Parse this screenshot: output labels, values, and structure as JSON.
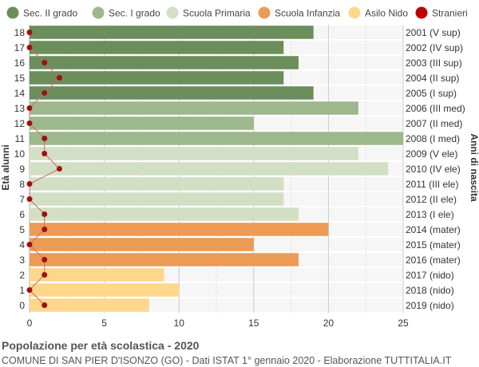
{
  "chart_data": {
    "type": "bar",
    "orientation": "horizontal",
    "title": "Popolazione per età scolastica - 2020",
    "subtitle": "COMUNE DI SAN PIER D'ISONZO (GO) - Dati ISTAT 1° gennaio 2020 - Elaborazione TUTTITALIA.IT",
    "ylabel_left": "Età alunni",
    "ylabel_right": "Anni di nascita",
    "xlim": [
      0,
      25
    ],
    "xticks": [
      "0",
      "5",
      "10",
      "15",
      "20",
      "25"
    ],
    "grid": true,
    "legend_position": "top",
    "legend": [
      {
        "label": "Sec. II grado",
        "color": "#6b8e5a"
      },
      {
        "label": "Sec. I grado",
        "color": "#9db88c"
      },
      {
        "label": "Scuola Primaria",
        "color": "#d3dfc4"
      },
      {
        "label": "Scuola Infanzia",
        "color": "#ec9b55"
      },
      {
        "label": "Asilo Nido",
        "color": "#fdd78b"
      },
      {
        "label": "Stranieri",
        "color": "#c00000"
      }
    ],
    "rows": [
      {
        "age": "18",
        "year": "2001 (V sup)",
        "value": 19,
        "stranieri": 0,
        "group": 0
      },
      {
        "age": "17",
        "year": "2002 (IV sup)",
        "value": 17,
        "stranieri": 0,
        "group": 0
      },
      {
        "age": "16",
        "year": "2003 (III sup)",
        "value": 18,
        "stranieri": 1,
        "group": 0
      },
      {
        "age": "15",
        "year": "2004 (II sup)",
        "value": 17,
        "stranieri": 2,
        "group": 0
      },
      {
        "age": "14",
        "year": "2005 (I sup)",
        "value": 19,
        "stranieri": 1,
        "group": 0
      },
      {
        "age": "13",
        "year": "2006 (III med)",
        "value": 22,
        "stranieri": 0,
        "group": 1
      },
      {
        "age": "12",
        "year": "2007 (II med)",
        "value": 15,
        "stranieri": 0,
        "group": 1
      },
      {
        "age": "11",
        "year": "2008 (I med)",
        "value": 25,
        "stranieri": 1,
        "group": 1
      },
      {
        "age": "10",
        "year": "2009 (V ele)",
        "value": 22,
        "stranieri": 1,
        "group": 2
      },
      {
        "age": "9",
        "year": "2010 (IV ele)",
        "value": 24,
        "stranieri": 2,
        "group": 2
      },
      {
        "age": "8",
        "year": "2011 (III ele)",
        "value": 17,
        "stranieri": 0,
        "group": 2
      },
      {
        "age": "7",
        "year": "2012 (II ele)",
        "value": 17,
        "stranieri": 0,
        "group": 2
      },
      {
        "age": "6",
        "year": "2013 (I ele)",
        "value": 18,
        "stranieri": 1,
        "group": 2
      },
      {
        "age": "5",
        "year": "2014 (mater)",
        "value": 20,
        "stranieri": 1,
        "group": 3
      },
      {
        "age": "4",
        "year": "2015 (mater)",
        "value": 15,
        "stranieri": 0,
        "group": 3
      },
      {
        "age": "3",
        "year": "2016 (mater)",
        "value": 18,
        "stranieri": 1,
        "group": 3
      },
      {
        "age": "2",
        "year": "2017 (nido)",
        "value": 9,
        "stranieri": 1,
        "group": 4
      },
      {
        "age": "1",
        "year": "2018 (nido)",
        "value": 10,
        "stranieri": 0,
        "group": 4
      },
      {
        "age": "0",
        "year": "2019 (nido)",
        "value": 8,
        "stranieri": 1,
        "group": 4
      }
    ]
  }
}
